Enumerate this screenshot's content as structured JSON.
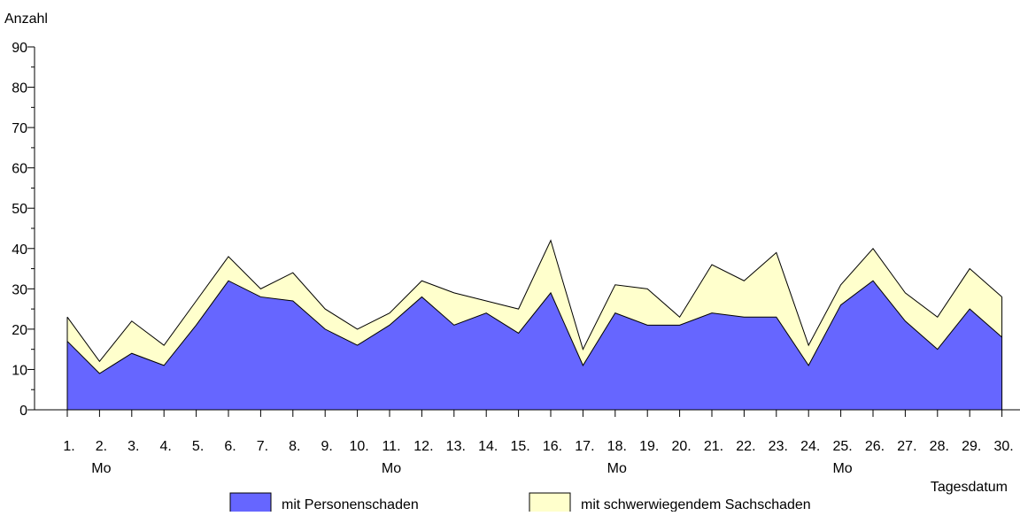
{
  "chart_data": {
    "type": "area",
    "stacked": true,
    "ylabel": "Anzahl",
    "xlabel": "Tagesdatum",
    "ylim": [
      0,
      90
    ],
    "yticks": [
      0,
      10,
      20,
      30,
      40,
      50,
      60,
      70,
      80,
      90
    ],
    "grid": false,
    "categories": [
      "1.",
      "2.",
      "3.",
      "4.",
      "5.",
      "6.",
      "7.",
      "8.",
      "9.",
      "10.",
      "11.",
      "12.",
      "13.",
      "14.",
      "15.",
      "16.",
      "17.",
      "18.",
      "19.",
      "20.",
      "21.",
      "22.",
      "23.",
      "24.",
      "25.",
      "26.",
      "27.",
      "28.",
      "29.",
      "30."
    ],
    "weekday_labels": [
      {
        "day": "2.",
        "label": "Mo"
      },
      {
        "day": "11.",
        "label": "Mo"
      },
      {
        "day": "18.",
        "label": "Mo"
      },
      {
        "day": "25.",
        "label": "Mo"
      }
    ],
    "series": [
      {
        "name": "mit Personenschaden",
        "color": "#6666ff",
        "values": [
          17,
          9,
          14,
          11,
          21,
          32,
          28,
          27,
          20,
          16,
          21,
          28,
          21,
          24,
          19,
          29,
          11,
          24,
          21,
          21,
          24,
          23,
          23,
          11,
          26,
          32,
          22,
          15,
          25,
          18
        ]
      },
      {
        "name": "mit schwerwiegendem Sachschaden",
        "color": "#ffffcc",
        "values": [
          6,
          3,
          8,
          5,
          6,
          6,
          2,
          7,
          5,
          4,
          3,
          4,
          8,
          3,
          6,
          13,
          4,
          7,
          9,
          2,
          12,
          9,
          16,
          5,
          5,
          8,
          7,
          8,
          10,
          10
        ]
      }
    ],
    "legend_position": "bottom"
  }
}
